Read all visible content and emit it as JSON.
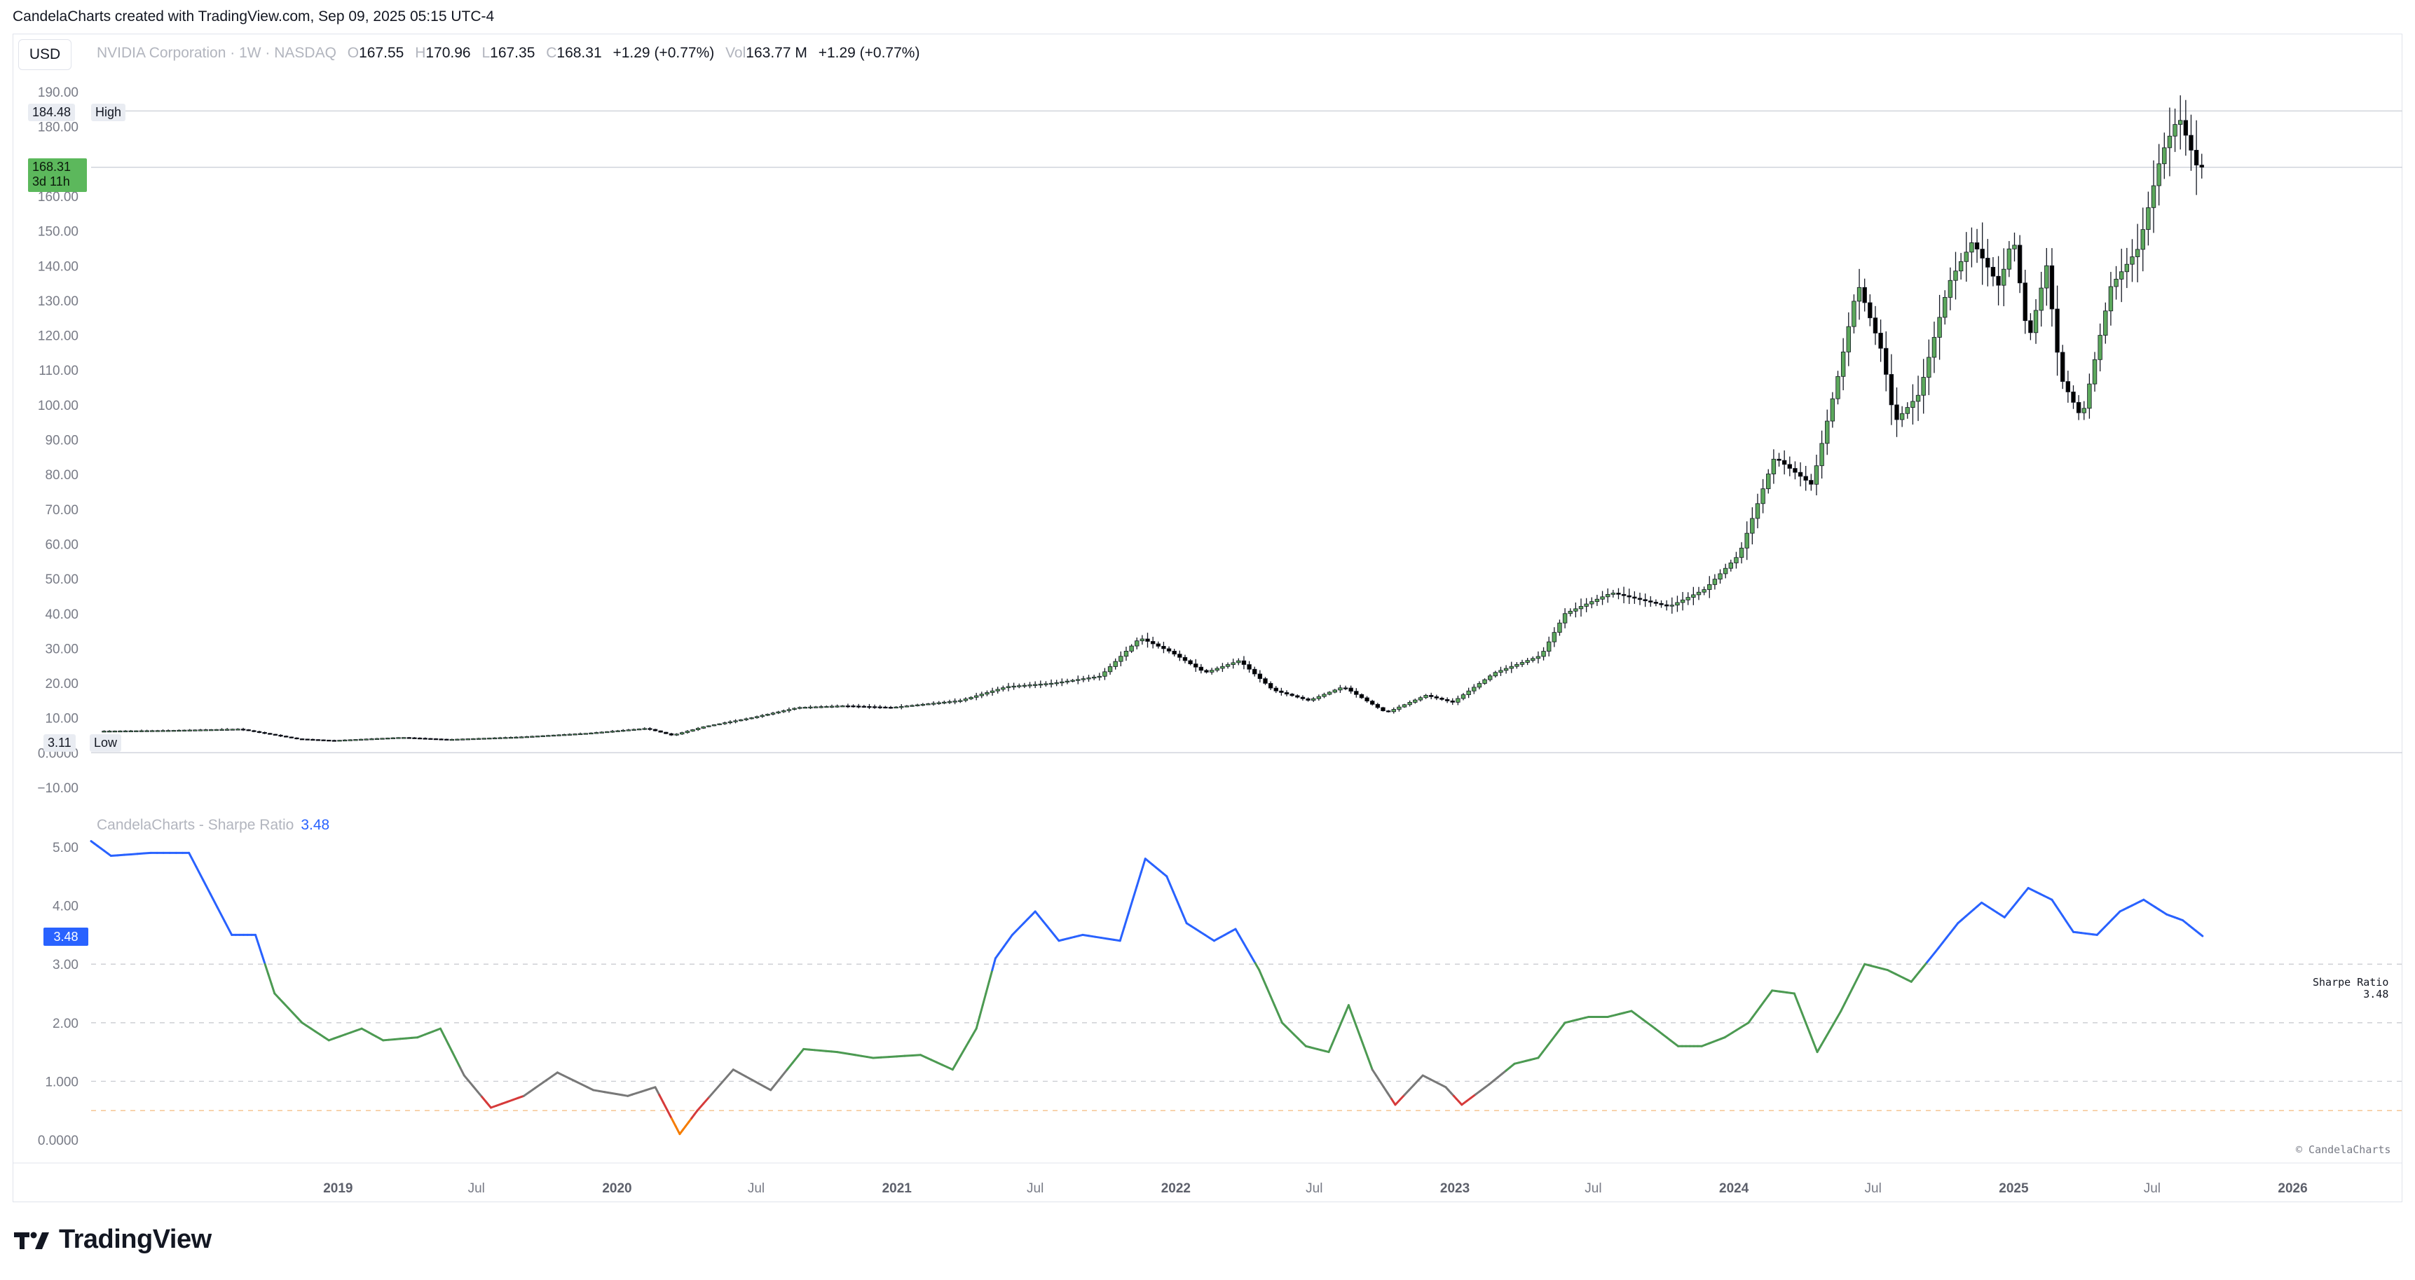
{
  "header": {
    "text": "CandelaCharts created with TradingView.com, Sep 09, 2025 05:15 UTC-4"
  },
  "toolbar": {
    "currency_label": "USD"
  },
  "legend": {
    "symbol": "NVIDIA Corporation · 1W · NASDAQ",
    "o_label": "O",
    "o_value": "167.55",
    "h_label": "H",
    "h_value": "170.96",
    "l_label": "L",
    "l_value": "167.35",
    "c_label": "C",
    "c_value": "168.31",
    "change": "+1.29 (+0.77%)",
    "vol_label": "Vol",
    "vol_value": "163.77 M",
    "vol_change": "+1.29 (+0.77%)"
  },
  "price_tags": {
    "high_value": "184.48",
    "high_label": "High",
    "low_value": "3.11",
    "low_label": "Low",
    "last_price": "168.31",
    "countdown": "3d 11h"
  },
  "indicator": {
    "title": "CandelaCharts - Sharpe Ratio",
    "value": "3.48",
    "note_name": "Sharpe Ratio",
    "note_value": "3.48"
  },
  "copyright": "© CandelaCharts",
  "brand": "TradingView",
  "colors": {
    "up": "#5ca85c",
    "down": "#000000",
    "sharpe_blue": "#2962ff",
    "sharpe_green": "#4c9a52",
    "sharpe_gray": "#787878",
    "sharpe_red": "#d63a3a",
    "sharpe_orange": "#f57c00"
  },
  "chart_data": [
    {
      "type": "candlestick",
      "title": "NVIDIA Corporation · 1W · NASDAQ",
      "ylim": [
        -10,
        190
      ],
      "y_ticks": [
        "190.00",
        "180.00",
        "160.00",
        "150.00",
        "140.00",
        "130.00",
        "120.00",
        "110.00",
        "100.00",
        "90.00",
        "80.00",
        "70.00",
        "60.00",
        "50.00",
        "40.00",
        "30.00",
        "20.00",
        "10.00",
        "0.0000",
        "−10.00"
      ],
      "x_ticks": [
        "2019",
        "Jul",
        "2020",
        "Jul",
        "2021",
        "Jul",
        "2022",
        "Jul",
        "2023",
        "Jul",
        "2024",
        "Jul",
        "2025",
        "Jul",
        "2026"
      ],
      "x_tick_dates": [
        "2019-01-01",
        "2019-07-01",
        "2020-01-01",
        "2020-07-01",
        "2021-01-01",
        "2021-07-01",
        "2022-01-01",
        "2022-07-01",
        "2023-01-01",
        "2023-07-01",
        "2024-01-01",
        "2024-07-01",
        "2025-01-01",
        "2025-07-01",
        "2026-01-01"
      ],
      "xlim": [
        "2018-02-12",
        "2026-04-15"
      ],
      "close_series": [
        {
          "date": "2018-03-01",
          "close": 6.2
        },
        {
          "date": "2018-06-01",
          "close": 6.4
        },
        {
          "date": "2018-09-01",
          "close": 6.8
        },
        {
          "date": "2018-11-15",
          "close": 4.0
        },
        {
          "date": "2019-01-01",
          "close": 3.5
        },
        {
          "date": "2019-04-01",
          "close": 4.4
        },
        {
          "date": "2019-06-01",
          "close": 3.8
        },
        {
          "date": "2019-09-01",
          "close": 4.5
        },
        {
          "date": "2019-12-01",
          "close": 5.6
        },
        {
          "date": "2020-02-15",
          "close": 7.0
        },
        {
          "date": "2020-03-20",
          "close": 5.0
        },
        {
          "date": "2020-05-01",
          "close": 7.5
        },
        {
          "date": "2020-07-01",
          "close": 10.0
        },
        {
          "date": "2020-09-01",
          "close": 13.0
        },
        {
          "date": "2020-11-01",
          "close": 13.5
        },
        {
          "date": "2021-01-01",
          "close": 13.0
        },
        {
          "date": "2021-04-01",
          "close": 15.0
        },
        {
          "date": "2021-06-01",
          "close": 19.0
        },
        {
          "date": "2021-08-01",
          "close": 20.0
        },
        {
          "date": "2021-10-01",
          "close": 22.0
        },
        {
          "date": "2021-11-22",
          "close": 33.0
        },
        {
          "date": "2022-01-01",
          "close": 29.0
        },
        {
          "date": "2022-02-15",
          "close": 23.0
        },
        {
          "date": "2022-04-01",
          "close": 26.5
        },
        {
          "date": "2022-05-15",
          "close": 18.0
        },
        {
          "date": "2022-07-01",
          "close": 15.0
        },
        {
          "date": "2022-08-15",
          "close": 19.0
        },
        {
          "date": "2022-10-10",
          "close": 11.5
        },
        {
          "date": "2022-12-01",
          "close": 16.5
        },
        {
          "date": "2023-01-05",
          "close": 14.5
        },
        {
          "date": "2023-03-01",
          "close": 23.0
        },
        {
          "date": "2023-05-01",
          "close": 28.0
        },
        {
          "date": "2023-06-01",
          "close": 40.0
        },
        {
          "date": "2023-08-01",
          "close": 46.0
        },
        {
          "date": "2023-10-15",
          "close": 42.0
        },
        {
          "date": "2023-12-01",
          "close": 47.0
        },
        {
          "date": "2024-01-15",
          "close": 57.0
        },
        {
          "date": "2024-03-01",
          "close": 85.0
        },
        {
          "date": "2024-04-19",
          "close": 77.0
        },
        {
          "date": "2024-05-25",
          "close": 110.0
        },
        {
          "date": "2024-06-18",
          "close": 135.0
        },
        {
          "date": "2024-07-20",
          "close": 115.0
        },
        {
          "date": "2024-08-05",
          "close": 95.0
        },
        {
          "date": "2024-09-06",
          "close": 103.0
        },
        {
          "date": "2024-10-15",
          "close": 135.0
        },
        {
          "date": "2024-11-15",
          "close": 147.0
        },
        {
          "date": "2024-12-20",
          "close": 134.0
        },
        {
          "date": "2025-01-07",
          "close": 149.0
        },
        {
          "date": "2025-01-27",
          "close": 118.0
        },
        {
          "date": "2025-02-20",
          "close": 140.0
        },
        {
          "date": "2025-03-10",
          "close": 108.0
        },
        {
          "date": "2025-04-07",
          "close": 96.0
        },
        {
          "date": "2025-05-15",
          "close": 134.0
        },
        {
          "date": "2025-06-20",
          "close": 145.0
        },
        {
          "date": "2025-07-20",
          "close": 172.0
        },
        {
          "date": "2025-08-12",
          "close": 183.0
        },
        {
          "date": "2025-09-05",
          "close": 168.31
        }
      ],
      "high": 184.48,
      "low": 3.11,
      "last": 168.31
    },
    {
      "type": "line",
      "title": "CandelaCharts - Sharpe Ratio",
      "ylim": [
        0,
        5.2
      ],
      "y_ticks": [
        "5.00",
        "4.00",
        "3.00",
        "2.00",
        "1.000",
        "0.0000"
      ],
      "reference_lines": [
        3.0,
        2.0,
        1.0,
        0.5
      ],
      "series": [
        {
          "points": [
            {
              "date": "2018-02-12",
              "v": 5.1
            },
            {
              "date": "2018-03-10",
              "v": 4.85
            },
            {
              "date": "2018-05-01",
              "v": 4.9
            },
            {
              "date": "2018-06-20",
              "v": 4.9
            },
            {
              "date": "2018-08-15",
              "v": 3.5
            },
            {
              "date": "2018-09-15",
              "v": 3.5
            },
            {
              "date": "2018-10-10",
              "v": 2.5
            },
            {
              "date": "2018-11-15",
              "v": 2.0
            },
            {
              "date": "2018-12-20",
              "v": 1.7
            },
            {
              "date": "2019-02-01",
              "v": 1.9
            },
            {
              "date": "2019-03-01",
              "v": 1.7
            },
            {
              "date": "2019-04-15",
              "v": 1.75
            },
            {
              "date": "2019-05-15",
              "v": 1.9
            },
            {
              "date": "2019-06-15",
              "v": 1.1
            },
            {
              "date": "2019-07-20",
              "v": 0.55
            },
            {
              "date": "2019-09-01",
              "v": 0.75
            },
            {
              "date": "2019-10-15",
              "v": 1.15
            },
            {
              "date": "2019-12-01",
              "v": 0.85
            },
            {
              "date": "2020-01-15",
              "v": 0.75
            },
            {
              "date": "2020-02-20",
              "v": 0.9
            },
            {
              "date": "2020-03-23",
              "v": 0.1
            },
            {
              "date": "2020-04-15",
              "v": 0.5
            },
            {
              "date": "2020-06-01",
              "v": 1.2
            },
            {
              "date": "2020-07-20",
              "v": 0.85
            },
            {
              "date": "2020-09-01",
              "v": 1.55
            },
            {
              "date": "2020-10-15",
              "v": 1.5
            },
            {
              "date": "2020-12-01",
              "v": 1.4
            },
            {
              "date": "2021-02-01",
              "v": 1.45
            },
            {
              "date": "2021-03-15",
              "v": 1.2
            },
            {
              "date": "2021-04-15",
              "v": 1.9
            },
            {
              "date": "2021-05-10",
              "v": 3.1
            },
            {
              "date": "2021-06-01",
              "v": 3.5
            },
            {
              "date": "2021-07-01",
              "v": 3.9
            },
            {
              "date": "2021-08-01",
              "v": 3.4
            },
            {
              "date": "2021-09-01",
              "v": 3.5
            },
            {
              "date": "2021-10-20",
              "v": 3.4
            },
            {
              "date": "2021-11-22",
              "v": 4.8
            },
            {
              "date": "2021-12-20",
              "v": 4.5
            },
            {
              "date": "2022-01-15",
              "v": 3.7
            },
            {
              "date": "2022-02-20",
              "v": 3.4
            },
            {
              "date": "2022-03-20",
              "v": 3.6
            },
            {
              "date": "2022-04-20",
              "v": 2.9
            },
            {
              "date": "2022-05-20",
              "v": 2.0
            },
            {
              "date": "2022-06-20",
              "v": 1.6
            },
            {
              "date": "2022-07-20",
              "v": 1.5
            },
            {
              "date": "2022-08-15",
              "v": 2.3
            },
            {
              "date": "2022-09-15",
              "v": 1.2
            },
            {
              "date": "2022-10-15",
              "v": 0.6
            },
            {
              "date": "2022-11-20",
              "v": 1.1
            },
            {
              "date": "2022-12-20",
              "v": 0.9
            },
            {
              "date": "2023-01-10",
              "v": 0.6
            },
            {
              "date": "2023-02-15",
              "v": 0.95
            },
            {
              "date": "2023-03-20",
              "v": 1.3
            },
            {
              "date": "2023-04-20",
              "v": 1.4
            },
            {
              "date": "2023-05-25",
              "v": 2.0
            },
            {
              "date": "2023-06-25",
              "v": 2.1
            },
            {
              "date": "2023-07-20",
              "v": 2.1
            },
            {
              "date": "2023-08-20",
              "v": 2.2
            },
            {
              "date": "2023-09-20",
              "v": 1.9
            },
            {
              "date": "2023-10-20",
              "v": 1.6
            },
            {
              "date": "2023-11-20",
              "v": 1.6
            },
            {
              "date": "2023-12-20",
              "v": 1.75
            },
            {
              "date": "2024-01-20",
              "v": 2.0
            },
            {
              "date": "2024-02-20",
              "v": 2.55
            },
            {
              "date": "2024-03-20",
              "v": 2.5
            },
            {
              "date": "2024-04-19",
              "v": 1.5
            },
            {
              "date": "2024-05-20",
              "v": 2.2
            },
            {
              "date": "2024-06-20",
              "v": 3.0
            },
            {
              "date": "2024-07-20",
              "v": 2.9
            },
            {
              "date": "2024-08-20",
              "v": 2.7
            },
            {
              "date": "2024-09-20",
              "v": 3.2
            },
            {
              "date": "2024-10-20",
              "v": 3.7
            },
            {
              "date": "2024-11-20",
              "v": 4.05
            },
            {
              "date": "2024-12-20",
              "v": 3.8
            },
            {
              "date": "2025-01-20",
              "v": 4.3
            },
            {
              "date": "2025-02-20",
              "v": 4.1
            },
            {
              "date": "2025-03-20",
              "v": 3.55
            },
            {
              "date": "2025-04-20",
              "v": 3.5
            },
            {
              "date": "2025-05-20",
              "v": 3.9
            },
            {
              "date": "2025-06-20",
              "v": 4.1
            },
            {
              "date": "2025-07-20",
              "v": 3.85
            },
            {
              "date": "2025-08-10",
              "v": 3.75
            },
            {
              "date": "2025-09-05",
              "v": 3.48
            }
          ]
        }
      ]
    }
  ]
}
